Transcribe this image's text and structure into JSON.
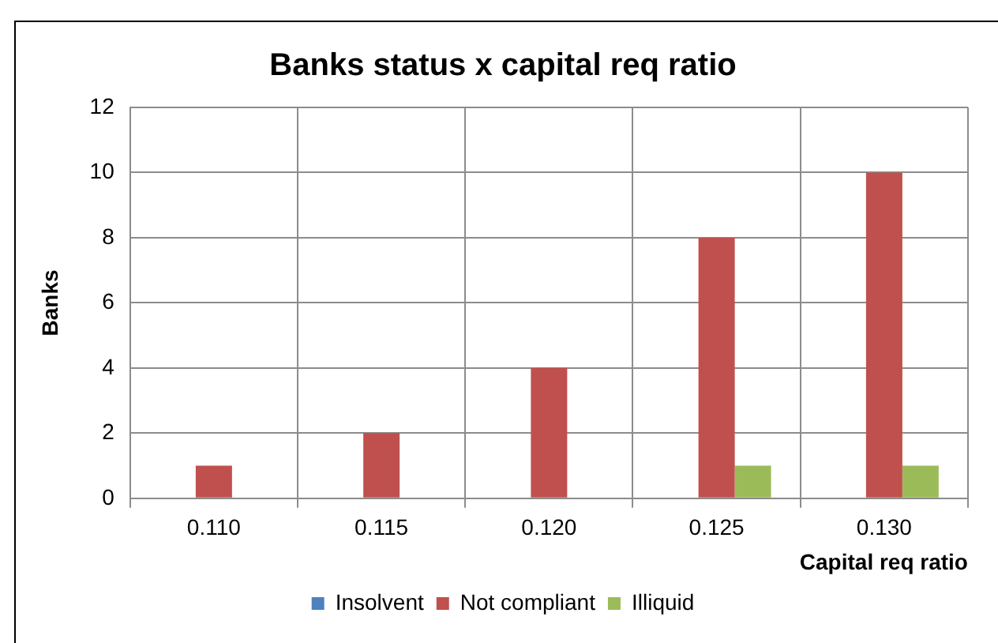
{
  "chart_data": {
    "type": "bar",
    "title": "Banks status x capital req ratio",
    "xlabel": "Capital req ratio",
    "ylabel": "Banks",
    "categories": [
      "0.110",
      "0.115",
      "0.120",
      "0.125",
      "0.130"
    ],
    "series": [
      {
        "name": "Insolvent",
        "color": "#4f81bd",
        "values": [
          0,
          0,
          0,
          0,
          0
        ]
      },
      {
        "name": "Not compliant",
        "color": "#c0504d",
        "values": [
          1,
          2,
          4,
          8,
          10
        ]
      },
      {
        "name": "Illiquid",
        "color": "#9bbb59",
        "values": [
          0,
          0,
          0,
          1,
          1
        ]
      }
    ],
    "ylim": [
      0,
      12
    ],
    "yticks": [
      0,
      2,
      4,
      6,
      8,
      10,
      12
    ],
    "grid": true,
    "legend": "bottom"
  }
}
